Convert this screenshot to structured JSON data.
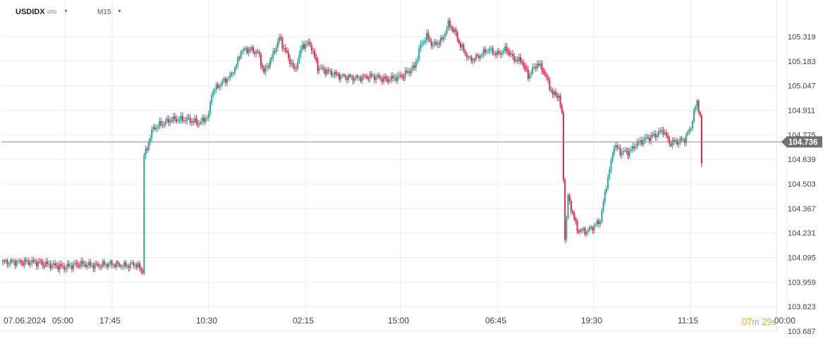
{
  "toolbar": {
    "symbol": "USDIDX",
    "instrument_type": "CFD",
    "timeframe": "M15"
  },
  "timer": {
    "minutes": "07",
    "minutes_unit": "m",
    "seconds": "29",
    "seconds_unit": "s"
  },
  "colors": {
    "up": "#26a69a",
    "down": "#e0294a",
    "grid": "#eeeeee",
    "current_price_line": "#8a8a8a",
    "price_badge": "#6e7378",
    "timer": "#f5a623"
  },
  "chart_data": {
    "type": "candlestick",
    "timeframe": "M15",
    "current_price": 104.736,
    "price_ticks": [
      105.319,
      105.183,
      105.047,
      104.911,
      104.775,
      104.639,
      104.503,
      104.367,
      104.231,
      104.095,
      103.959,
      103.823,
      103.687
    ],
    "time_ticks": [
      "07.06.2024",
      "05:00",
      "17:45",
      "10:30",
      "02:15",
      "15:00",
      "06:45",
      "19:30",
      "11:15",
      "00:00"
    ],
    "ylim": [
      103.687,
      105.42
    ],
    "grid": true,
    "close_path": [
      [
        0,
        104.07
      ],
      [
        20,
        104.07
      ],
      [
        40,
        104.04
      ],
      [
        50,
        104.06
      ],
      [
        60,
        104.05
      ],
      [
        70,
        104.06
      ],
      [
        80,
        104.05
      ],
      [
        86,
        104.06
      ],
      [
        91,
        104.02
      ],
      [
        92,
        104.66
      ],
      [
        94,
        104.7
      ],
      [
        96,
        104.77
      ],
      [
        98,
        104.81
      ],
      [
        102,
        104.83
      ],
      [
        110,
        104.86
      ],
      [
        120,
        104.86
      ],
      [
        128,
        104.84
      ],
      [
        134,
        104.88
      ],
      [
        136,
        105.01
      ],
      [
        142,
        105.06
      ],
      [
        148,
        105.1
      ],
      [
        152,
        105.16
      ],
      [
        155,
        105.24
      ],
      [
        160,
        105.25
      ],
      [
        166,
        105.23
      ],
      [
        170,
        105.12
      ],
      [
        175,
        105.2
      ],
      [
        180,
        105.31
      ],
      [
        185,
        105.22
      ],
      [
        190,
        105.13
      ],
      [
        195,
        105.27
      ],
      [
        200,
        105.28
      ],
      [
        205,
        105.15
      ],
      [
        210,
        105.13
      ],
      [
        220,
        105.1
      ],
      [
        230,
        105.09
      ],
      [
        240,
        105.1
      ],
      [
        250,
        105.08
      ],
      [
        260,
        105.1
      ],
      [
        268,
        105.15
      ],
      [
        272,
        105.27
      ],
      [
        276,
        105.32
      ],
      [
        280,
        105.27
      ],
      [
        286,
        105.3
      ],
      [
        290,
        105.39
      ],
      [
        294,
        105.35
      ],
      [
        298,
        105.27
      ],
      [
        304,
        105.19
      ],
      [
        310,
        105.21
      ],
      [
        316,
        105.25
      ],
      [
        322,
        105.22
      ],
      [
        328,
        105.25
      ],
      [
        332,
        105.2
      ],
      [
        338,
        105.18
      ],
      [
        342,
        105.1
      ],
      [
        348,
        105.17
      ],
      [
        352,
        105.13
      ],
      [
        358,
        105.0
      ],
      [
        362,
        104.99
      ],
      [
        364,
        104.88
      ],
      [
        366,
        104.2
      ],
      [
        368,
        104.43
      ],
      [
        374,
        104.25
      ],
      [
        380,
        104.24
      ],
      [
        385,
        104.27
      ],
      [
        389,
        104.3
      ],
      [
        393,
        104.5
      ],
      [
        396,
        104.62
      ],
      [
        398,
        104.72
      ],
      [
        402,
        104.68
      ],
      [
        408,
        104.68
      ],
      [
        412,
        104.72
      ],
      [
        418,
        104.75
      ],
      [
        424,
        104.77
      ],
      [
        430,
        104.8
      ],
      [
        434,
        104.73
      ],
      [
        440,
        104.74
      ],
      [
        444,
        104.75
      ],
      [
        448,
        104.82
      ],
      [
        450,
        104.9
      ],
      [
        452,
        104.96
      ],
      [
        454,
        104.88
      ],
      [
        455,
        104.62
      ]
    ]
  }
}
